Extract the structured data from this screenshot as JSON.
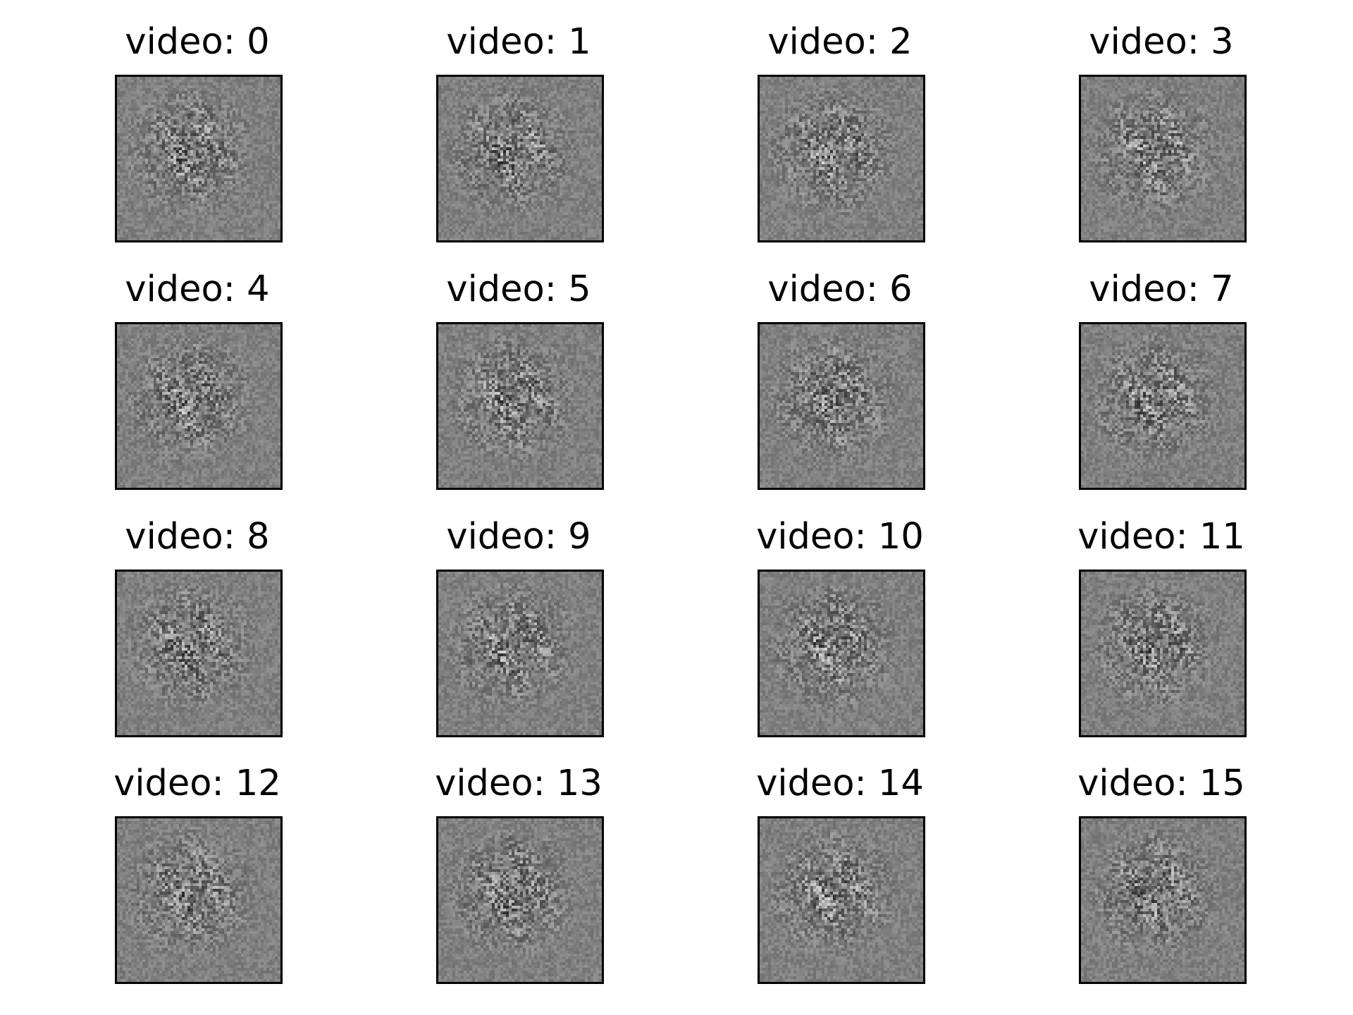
{
  "figure": {
    "background_color": "#ffffff",
    "frame_color": "#000000",
    "image_base_color": "#808080",
    "panels": [
      {
        "title": "video: 0"
      },
      {
        "title": "video: 1"
      },
      {
        "title": "video: 2"
      },
      {
        "title": "video: 3"
      },
      {
        "title": "video: 4"
      },
      {
        "title": "video: 5"
      },
      {
        "title": "video: 6"
      },
      {
        "title": "video: 7"
      },
      {
        "title": "video: 8"
      },
      {
        "title": "video: 9"
      },
      {
        "title": "video: 10"
      },
      {
        "title": "video: 11"
      },
      {
        "title": "video: 12"
      },
      {
        "title": "video: 13"
      },
      {
        "title": "video: 14"
      },
      {
        "title": "video: 15"
      }
    ]
  }
}
